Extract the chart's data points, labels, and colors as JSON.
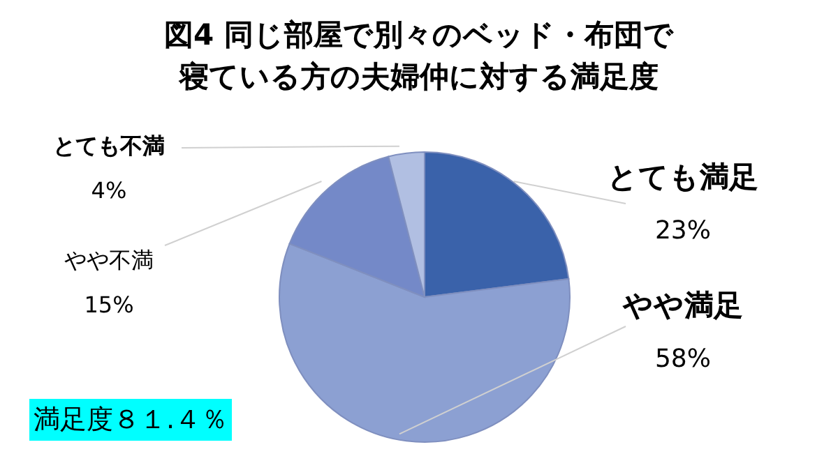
{
  "chart_data": {
    "type": "pie",
    "title": "図4 同じ部屋で別々のベッド・布団で寝ている方の夫婦仲に対する満足度",
    "categories": [
      "とても満足",
      "やや満足",
      "やや不満",
      "とても不満"
    ],
    "values": [
      23,
      58,
      15,
      4
    ],
    "value_labels": [
      "23%",
      "58%",
      "15%",
      "4%"
    ],
    "colors": [
      "#3a62aa",
      "#8ca0d2",
      "#7489c8",
      "#b1bfe2"
    ],
    "annotations": [
      "満足度８１.４％"
    ]
  }
}
